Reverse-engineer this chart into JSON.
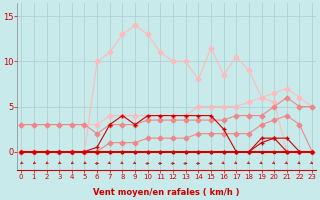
{
  "background_color": "#c8eaea",
  "grid_color": "#aacccc",
  "xlabel": "Vent moyen/en rafales ( km/h )",
  "xlabel_color": "#cc0000",
  "xlabel_fontsize": 6,
  "tick_color": "#cc0000",
  "tick_fontsize": 5,
  "yticks": [
    0,
    5,
    10,
    15
  ],
  "xticks": [
    0,
    1,
    2,
    3,
    4,
    5,
    6,
    7,
    8,
    9,
    10,
    11,
    12,
    13,
    14,
    15,
    16,
    17,
    18,
    19,
    20,
    21,
    22,
    23
  ],
  "xlim": [
    -0.3,
    23.3
  ],
  "ylim": [
    -2.0,
    16.5
  ],
  "line_dark1_y": [
    0,
    0,
    0,
    0,
    0,
    0,
    0,
    0,
    0,
    0,
    0,
    0,
    0,
    0,
    0,
    0,
    0,
    0,
    0,
    0,
    0,
    0,
    0,
    0
  ],
  "line_dark2_y": [
    0,
    0,
    0,
    0,
    0,
    0,
    0,
    0,
    0,
    0,
    0,
    0,
    0,
    0,
    0,
    0,
    0,
    0,
    0,
    1,
    1.5,
    1.5,
    0,
    0
  ],
  "line_dark3_y": [
    0,
    0,
    0,
    0,
    0,
    0,
    0.5,
    3,
    4,
    3,
    4,
    4,
    4,
    4,
    4,
    4,
    2.5,
    0,
    0,
    1.5,
    1.5,
    0,
    0,
    0
  ],
  "line_mid1_y": [
    0,
    0,
    0,
    0,
    0,
    0,
    0,
    1,
    1,
    1,
    1.5,
    1.5,
    1.5,
    1.5,
    2,
    2,
    2,
    2,
    2,
    3,
    3.5,
    4,
    3,
    0
  ],
  "line_mid2_y": [
    3,
    3,
    3,
    3,
    3,
    3,
    2,
    3,
    3,
    3,
    3.5,
    3.5,
    3.5,
    3.5,
    3.5,
    3.5,
    3.5,
    4,
    4,
    4,
    5,
    6,
    5,
    5
  ],
  "line_light1_y": [
    3,
    3,
    3,
    3,
    3,
    3,
    3,
    4,
    4,
    4,
    4,
    4,
    4,
    4,
    5,
    5,
    5,
    5,
    5.5,
    6,
    6.5,
    7,
    6,
    5
  ],
  "line_light2_y": [
    0,
    0,
    0,
    0,
    0,
    0,
    10,
    11,
    13,
    14,
    13,
    11,
    10,
    10,
    8,
    11.5,
    8.5,
    10.5,
    9,
    6,
    5.5,
    0,
    0,
    0
  ],
  "x": [
    0,
    1,
    2,
    3,
    4,
    5,
    6,
    7,
    8,
    9,
    10,
    11,
    12,
    13,
    14,
    15,
    16,
    17,
    18,
    19,
    20,
    21,
    22,
    23
  ],
  "arrow_angles": [
    225,
    225,
    225,
    225,
    225,
    225,
    0,
    315,
    315,
    315,
    0,
    0,
    0,
    0,
    0,
    0,
    315,
    315,
    315,
    315,
    315,
    315,
    315,
    315
  ],
  "col_dark": "#cc0000",
  "col_mid": "#ee8888",
  "col_light": "#ffbbbb"
}
